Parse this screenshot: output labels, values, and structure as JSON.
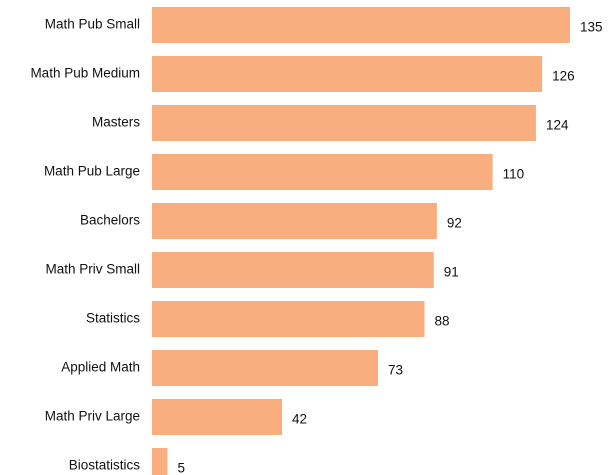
{
  "chart_data": {
    "type": "bar",
    "orientation": "horizontal",
    "categories": [
      "Math Pub Small",
      "Math Pub Medium",
      "Masters",
      "Math Pub Large",
      "Bachelors",
      "Math Priv Small",
      "Statistics",
      "Applied Math",
      "Math Priv Large",
      "Biostatistics"
    ],
    "values": [
      135,
      126,
      124,
      110,
      92,
      91,
      88,
      73,
      42,
      5
    ],
    "data_labels": [
      "135",
      "126",
      "124",
      "110",
      "92",
      "91",
      "88",
      "73",
      "42",
      "5"
    ],
    "title": "",
    "xlabel": "",
    "ylabel": "",
    "xlim": [
      0,
      135
    ],
    "grid": false,
    "legend": "none",
    "colors": {
      "bar": "#F8AE7E",
      "text": "#111111",
      "background": "#FFFFFF"
    }
  }
}
